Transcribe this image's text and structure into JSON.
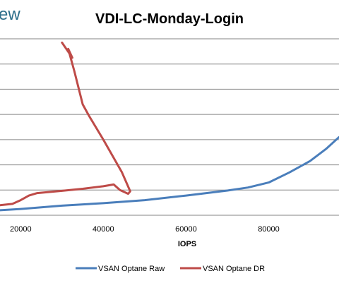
{
  "corner_text": "ew",
  "chart_data": {
    "type": "line",
    "title": "VDI-LC-Monday-Login",
    "xlabel": "IOPS",
    "ylabel": "",
    "x_ticks": [
      "20000",
      "40000",
      "60000",
      "80000"
    ],
    "xlim": [
      15000,
      97000
    ],
    "ylim": [
      0,
      7
    ],
    "gridlines": [
      0,
      1,
      2,
      3,
      4,
      5,
      6,
      7
    ],
    "grid": true,
    "legend": "bottom",
    "series": [
      {
        "name": "VSAN Optane Raw",
        "color": "#4a7ebb",
        "points": [
          [
            15000,
            0.2
          ],
          [
            20000,
            0.25
          ],
          [
            30000,
            0.38
          ],
          [
            40000,
            0.48
          ],
          [
            50000,
            0.6
          ],
          [
            60000,
            0.78
          ],
          [
            70000,
            0.98
          ],
          [
            75000,
            1.1
          ],
          [
            80000,
            1.3
          ],
          [
            85000,
            1.7
          ],
          [
            90000,
            2.15
          ],
          [
            94000,
            2.65
          ],
          [
            97000,
            3.1
          ]
        ]
      },
      {
        "name": "VSAN Optane DR",
        "color": "#be4b48",
        "points": [
          [
            15000,
            0.4
          ],
          [
            18000,
            0.45
          ],
          [
            20000,
            0.6
          ],
          [
            22000,
            0.78
          ],
          [
            24000,
            0.88
          ],
          [
            30000,
            0.97
          ],
          [
            35000,
            1.05
          ],
          [
            40000,
            1.15
          ],
          [
            42500,
            1.22
          ],
          [
            44000,
            1.0
          ],
          [
            46000,
            0.85
          ],
          [
            46500,
            0.95
          ],
          [
            44500,
            1.7
          ],
          [
            40000,
            3.0
          ],
          [
            36500,
            3.95
          ],
          [
            35000,
            4.4
          ],
          [
            33000,
            5.7
          ],
          [
            32000,
            6.3
          ],
          [
            31500,
            6.6
          ],
          [
            32500,
            6.25
          ],
          [
            30000,
            6.85
          ]
        ]
      }
    ]
  }
}
